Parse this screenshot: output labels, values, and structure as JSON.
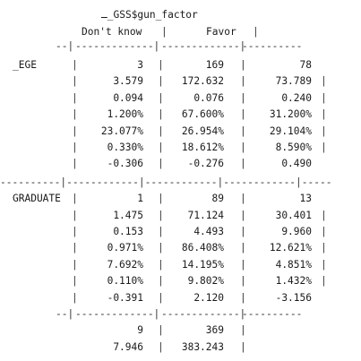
{
  "header": {
    "title": "ـ_GSS$gun_factor",
    "cols": [
      "Don't know",
      "Favor"
    ]
  },
  "groups": [
    {
      "label": "_EGE",
      "rows": [
        [
          "3",
          "169",
          "78"
        ],
        [
          "3.579",
          "172.632",
          "73.789"
        ],
        [
          "0.094",
          "0.076",
          "0.240"
        ],
        [
          "1.200%",
          "67.600%",
          "31.200%"
        ],
        [
          "23.077%",
          "26.954%",
          "29.104%"
        ],
        [
          "0.330%",
          "18.612%",
          "8.590%"
        ],
        [
          "-0.306",
          "-0.276",
          "0.490"
        ]
      ]
    },
    {
      "label": "GRADUATE",
      "rows": [
        [
          "1",
          "89",
          "13"
        ],
        [
          "1.475",
          "71.124",
          "30.401"
        ],
        [
          "0.153",
          "4.493",
          "9.960"
        ],
        [
          "0.971%",
          "86.408%",
          "12.621%"
        ],
        [
          "7.692%",
          "14.195%",
          "4.851%"
        ],
        [
          "0.110%",
          "9.802%",
          "1.432%"
        ],
        [
          "-0.391",
          "2.120",
          "-3.156"
        ]
      ]
    }
  ],
  "totals": [
    [
      "9",
      "369"
    ],
    [
      "7.946",
      "383.243"
    ]
  ]
}
